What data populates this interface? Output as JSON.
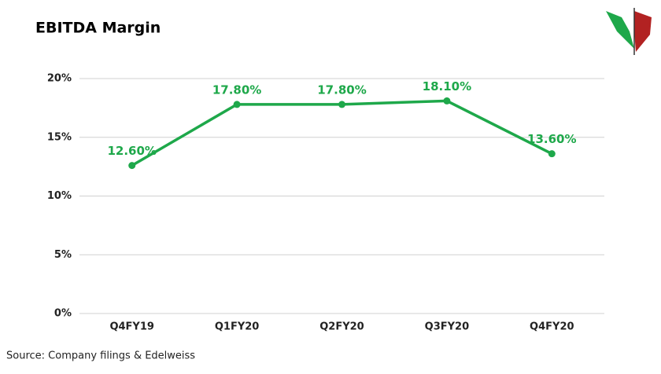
{
  "chart_data": {
    "type": "line",
    "title": "EBITDA Margin",
    "categories": [
      "Q4FY19",
      "Q1FY20",
      "Q2FY20",
      "Q3FY20",
      "Q4FY20"
    ],
    "series": [
      {
        "color": "#1ea84a",
        "values": [
          12.6,
          17.8,
          17.8,
          18.1,
          13.6
        ],
        "value_labels": [
          "12.60%",
          "17.80%",
          "17.80%",
          "18.10%",
          "13.60%"
        ]
      }
    ],
    "ylim": [
      0,
      20
    ],
    "yticks": [
      {
        "value": 0,
        "label": "0%"
      },
      {
        "value": 5,
        "label": "5%"
      },
      {
        "value": 10,
        "label": "10%"
      },
      {
        "value": 15,
        "label": "15%"
      },
      {
        "value": 20,
        "label": "20%"
      }
    ],
    "grid": true,
    "source": "Source: Company filings & Edelweiss"
  }
}
